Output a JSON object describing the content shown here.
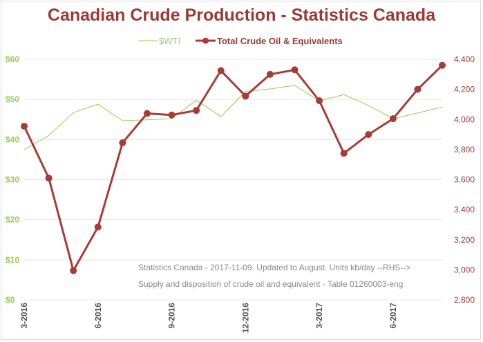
{
  "chart_data": {
    "type": "line",
    "title": "Canadian Crude Production - Statistics Canada",
    "categories": [
      "3-2016",
      "4-2016",
      "5-2016",
      "6-2016",
      "7-2016",
      "8-2016",
      "9-2016",
      "10-2016",
      "11-2016",
      "12-2016",
      "1-2017",
      "2-2017",
      "3-2017",
      "4-2017",
      "5-2017",
      "6-2017",
      "7-2017",
      "8-2017"
    ],
    "x_tick_labels": [
      "3-2016",
      "6-2016",
      "9-2016",
      "12-2016",
      "3-2017",
      "6-2017"
    ],
    "series": [
      {
        "name": "$WTI",
        "axis": "left",
        "color": "#92d050",
        "values": [
          37.5,
          41,
          46.7,
          48.8,
          44.7,
          44.9,
          45.2,
          49.8,
          45.7,
          52,
          52.6,
          53.5,
          49.6,
          51.2,
          48.5,
          45.2,
          46.6,
          48.1
        ]
      },
      {
        "name": "Total Crude Oil & Equivalents",
        "axis": "right",
        "color": "#a83c35",
        "values": [
          3955,
          3610,
          2995,
          3285,
          3845,
          4040,
          4030,
          4060,
          4325,
          4155,
          4300,
          4330,
          4125,
          3775,
          3900,
          4005,
          4200,
          4360
        ]
      }
    ],
    "y_left": {
      "min": 0,
      "max": 60,
      "tick_labels": [
        "$0",
        "$10",
        "$20",
        "$30",
        "$40",
        "$50",
        "$60"
      ]
    },
    "y_right": {
      "min": 2800,
      "max": 4400,
      "tick_labels": [
        "2,800",
        "3,000",
        "3,200",
        "3,400",
        "3,600",
        "3,800",
        "4,000",
        "4,200",
        "4,400"
      ]
    },
    "annotation": [
      "Statistics Canada - 2017-11-09. Updated to August. Units kb/day --RHS-->",
      "Supply and disposition of crude oil and equivalent - Table 01260003-eng"
    ],
    "legend_position": "top"
  }
}
